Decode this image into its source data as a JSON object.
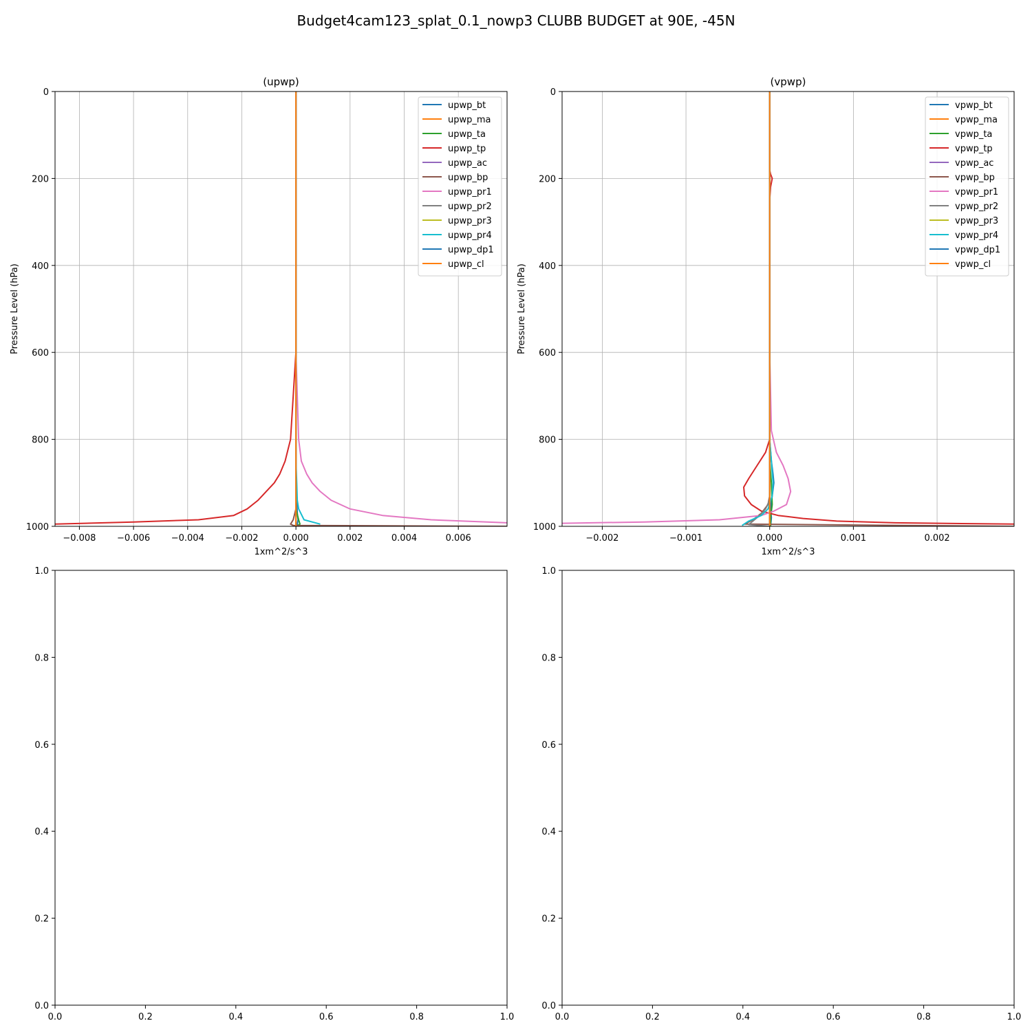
{
  "figure": {
    "title": "Budget4cam123_splat_0.1_nowp3 CLUBB BUDGET at 90E, -45N"
  },
  "chart_data": [
    {
      "type": "line",
      "title": "(upwp)",
      "xlabel": "1xm^2/s^3",
      "ylabel": "Pressure Level (hPa)",
      "xlim": [
        -0.0089,
        0.0078
      ],
      "ylim": [
        1000,
        0
      ],
      "y_inverted": true,
      "xticks": [
        -0.008,
        -0.006,
        -0.004,
        -0.002,
        0.0,
        0.002,
        0.004,
        0.006
      ],
      "xtick_labels": [
        "−0.008",
        "−0.006",
        "−0.004",
        "−0.002",
        "0.000",
        "0.002",
        "0.004",
        "0.006"
      ],
      "yticks": [
        0,
        200,
        400,
        600,
        800,
        1000
      ],
      "ytick_labels": [
        "0",
        "200",
        "400",
        "600",
        "800",
        "1000"
      ],
      "grid": true,
      "legend_position": "upper right",
      "series": [
        {
          "name": "upwp_bt",
          "color": "#1f77b4",
          "x": [
            0,
            0,
            5e-05,
            8e-05,
            5e-05,
            0
          ],
          "y": [
            0,
            900,
            970,
            985,
            995,
            1000
          ]
        },
        {
          "name": "upwp_ma",
          "color": "#ff7f0e",
          "x": [
            0,
            0,
            0
          ],
          "y": [
            0,
            990,
            1000
          ]
        },
        {
          "name": "upwp_ta",
          "color": "#2ca02c",
          "x": [
            0,
            0,
            0.0001,
            0.00015,
            0
          ],
          "y": [
            0,
            960,
            985,
            995,
            1000
          ]
        },
        {
          "name": "upwp_tp",
          "color": "#d62728",
          "x": [
            0,
            0,
            -0.0001,
            -0.0002,
            -0.0004,
            -0.0006,
            -0.0008,
            -0.0011,
            -0.0014,
            -0.0018,
            -0.0023,
            -0.0036,
            -0.006,
            -0.0089
          ],
          "y": [
            0,
            600,
            700,
            800,
            850,
            880,
            900,
            920,
            940,
            960,
            975,
            985,
            990,
            995
          ]
        },
        {
          "name": "upwp_ac",
          "color": "#9467bd",
          "x": [
            0,
            0,
            0
          ],
          "y": [
            0,
            990,
            1000
          ]
        },
        {
          "name": "upwp_bp",
          "color": "#8c564b",
          "x": [
            0,
            0,
            -0.0001,
            -0.0002,
            -0.0001,
            0.0078
          ],
          "y": [
            0,
            960,
            985,
            995,
            998,
            1000
          ]
        },
        {
          "name": "upwp_pr1",
          "color": "#e377c2",
          "x": [
            0,
            0,
            0.0001,
            0.0002,
            0.0004,
            0.0006,
            0.0009,
            0.0013,
            0.002,
            0.0032,
            0.005,
            0.0078
          ],
          "y": [
            0,
            600,
            800,
            850,
            880,
            900,
            920,
            940,
            960,
            975,
            985,
            992
          ]
        },
        {
          "name": "upwp_pr2",
          "color": "#7f7f7f",
          "x": [
            0,
            0,
            0
          ],
          "y": [
            0,
            990,
            1000
          ]
        },
        {
          "name": "upwp_pr3",
          "color": "#bcbd22",
          "x": [
            0,
            0,
            0
          ],
          "y": [
            0,
            990,
            1000
          ]
        },
        {
          "name": "upwp_pr4",
          "color": "#17becf",
          "x": [
            0,
            0,
            3e-05,
            5e-05,
            0.0001,
            0.0003,
            0.0009
          ],
          "y": [
            0,
            850,
            900,
            940,
            960,
            985,
            995
          ]
        },
        {
          "name": "upwp_dp1",
          "color": "#1f77b4",
          "x": [
            0,
            0,
            0
          ],
          "y": [
            0,
            990,
            1000
          ]
        },
        {
          "name": "upwp_cl",
          "color": "#ff7f0e",
          "x": [
            0,
            0,
            0
          ],
          "y": [
            0,
            995,
            1000
          ]
        }
      ]
    },
    {
      "type": "line",
      "title": "(vpwp)",
      "xlabel": "1xm^2/s^3",
      "ylabel": "Pressure Level (hPa)",
      "xlim": [
        -0.00248,
        0.00292
      ],
      "ylim": [
        1000,
        0
      ],
      "y_inverted": true,
      "xticks": [
        -0.002,
        -0.001,
        0.0,
        0.001,
        0.002
      ],
      "xtick_labels": [
        "−0.002",
        "−0.001",
        "0.000",
        "0.001",
        "0.002"
      ],
      "yticks": [
        0,
        200,
        400,
        600,
        800,
        1000
      ],
      "ytick_labels": [
        "0",
        "200",
        "400",
        "600",
        "800",
        "1000"
      ],
      "grid": true,
      "legend_position": "upper right",
      "series": [
        {
          "name": "vpwp_bt",
          "color": "#1f77b4",
          "x": [
            0,
            0,
            2e-05,
            4e-05,
            5e-05,
            3e-05,
            1e-05,
            2e-05,
            1e-05
          ],
          "y": [
            0,
            800,
            850,
            880,
            900,
            930,
            960,
            980,
            1000
          ]
        },
        {
          "name": "vpwp_ma",
          "color": "#ff7f0e",
          "x": [
            0,
            0,
            0
          ],
          "y": [
            0,
            990,
            1000
          ]
        },
        {
          "name": "vpwp_ta",
          "color": "#2ca02c",
          "x": [
            0,
            0,
            2e-05,
            3e-05,
            1e-05,
            1e-05
          ],
          "y": [
            0,
            850,
            900,
            950,
            980,
            1000
          ]
        },
        {
          "name": "vpwp_tp",
          "color": "#d62728",
          "x": [
            0,
            0,
            1e-05,
            3e-05,
            1e-05,
            0,
            0,
            -5e-05,
            -0.00015,
            -0.00025,
            -0.00031,
            -0.0003,
            -0.00022,
            -0.0001,
            0.0001,
            0.0004,
            0.0008,
            0.0015,
            0.00292
          ],
          "y": [
            0,
            180,
            190,
            200,
            220,
            250,
            800,
            830,
            860,
            890,
            910,
            930,
            950,
            965,
            975,
            982,
            988,
            992,
            995
          ]
        },
        {
          "name": "vpwp_ac",
          "color": "#9467bd",
          "x": [
            0,
            0,
            0
          ],
          "y": [
            0,
            990,
            1000
          ]
        },
        {
          "name": "vpwp_bp",
          "color": "#8c564b",
          "x": [
            0,
            0,
            -2e-05,
            -0.0001,
            -0.0002,
            -0.0003,
            0.00292
          ],
          "y": [
            0,
            930,
            950,
            970,
            985,
            995,
            1000
          ]
        },
        {
          "name": "vpwp_pr1",
          "color": "#e377c2",
          "x": [
            0,
            0,
            2e-05,
            8e-05,
            0.00016,
            0.00022,
            0.00025,
            0.0002,
            5e-05,
            -0.0001,
            -0.0006,
            -0.0015,
            -0.00248
          ],
          "y": [
            0,
            600,
            780,
            830,
            860,
            890,
            920,
            950,
            965,
            975,
            985,
            990,
            993
          ]
        },
        {
          "name": "vpwp_pr2",
          "color": "#7f7f7f",
          "x": [
            0,
            0,
            -5e-05,
            -0.00012,
            -0.0002,
            -0.00025,
            0
          ],
          "y": [
            0,
            940,
            960,
            975,
            988,
            996,
            1000
          ]
        },
        {
          "name": "vpwp_pr3",
          "color": "#bcbd22",
          "x": [
            0,
            0,
            0
          ],
          "y": [
            0,
            990,
            1000
          ]
        },
        {
          "name": "vpwp_pr4",
          "color": "#17becf",
          "x": [
            0,
            0,
            2e-05,
            4e-05,
            3e-05,
            -2e-05,
            -0.0001,
            -0.00025,
            -0.00033
          ],
          "y": [
            0,
            800,
            850,
            900,
            930,
            960,
            975,
            988,
            998
          ]
        },
        {
          "name": "vpwp_dp1",
          "color": "#1f77b4",
          "x": [
            0,
            0,
            0
          ],
          "y": [
            0,
            990,
            1000
          ]
        },
        {
          "name": "vpwp_cl",
          "color": "#ff7f0e",
          "x": [
            0,
            0,
            0
          ],
          "y": [
            0,
            995,
            1000
          ]
        }
      ]
    },
    {
      "type": "line",
      "title": "",
      "xlim": [
        0,
        1
      ],
      "ylim": [
        0,
        1
      ],
      "xticks": [
        0.0,
        0.2,
        0.4,
        0.6,
        0.8,
        1.0
      ],
      "xtick_labels": [
        "0.0",
        "0.2",
        "0.4",
        "0.6",
        "0.8",
        "1.0"
      ],
      "yticks": [
        0.0,
        0.2,
        0.4,
        0.6,
        0.8,
        1.0
      ],
      "ytick_labels": [
        "0.0",
        "0.2",
        "0.4",
        "0.6",
        "0.8",
        "1.0"
      ],
      "grid": false,
      "series": []
    },
    {
      "type": "line",
      "title": "",
      "xlim": [
        0,
        1
      ],
      "ylim": [
        0,
        1
      ],
      "xticks": [
        0.0,
        0.2,
        0.4,
        0.6,
        0.8,
        1.0
      ],
      "xtick_labels": [
        "0.0",
        "0.2",
        "0.4",
        "0.6",
        "0.8",
        "1.0"
      ],
      "yticks": [
        0.0,
        0.2,
        0.4,
        0.6,
        0.8,
        1.0
      ],
      "ytick_labels": [
        "0.0",
        "0.2",
        "0.4",
        "0.6",
        "0.8",
        "1.0"
      ],
      "grid": false,
      "series": []
    }
  ]
}
